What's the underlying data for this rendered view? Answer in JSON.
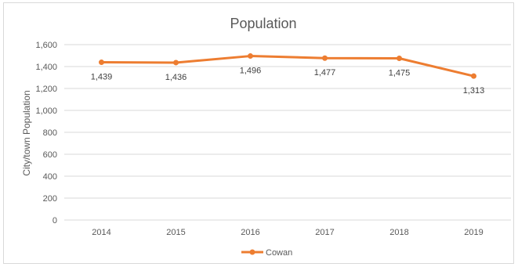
{
  "chart_data": {
    "type": "line",
    "title": "Population",
    "xlabel": "",
    "ylabel": "City/town Population",
    "categories": [
      "2014",
      "2015",
      "2016",
      "2017",
      "2018",
      "2019"
    ],
    "ylim": [
      0,
      1600
    ],
    "yticks": [
      0,
      200,
      400,
      600,
      800,
      1000,
      1200,
      1400,
      1600
    ],
    "ytick_labels": [
      "0",
      "200",
      "400",
      "600",
      "800",
      "1,000",
      "1,200",
      "1,400",
      "1,600"
    ],
    "grid": true,
    "legend_position": "bottom",
    "series": [
      {
        "name": "Cowan",
        "values": [
          1439,
          1436,
          1496,
          1477,
          1475,
          1313
        ],
        "data_labels": [
          "1,439",
          "1,436",
          "1,496",
          "1,477",
          "1,475",
          "1,313"
        ],
        "color": "#ED7D31"
      }
    ]
  }
}
